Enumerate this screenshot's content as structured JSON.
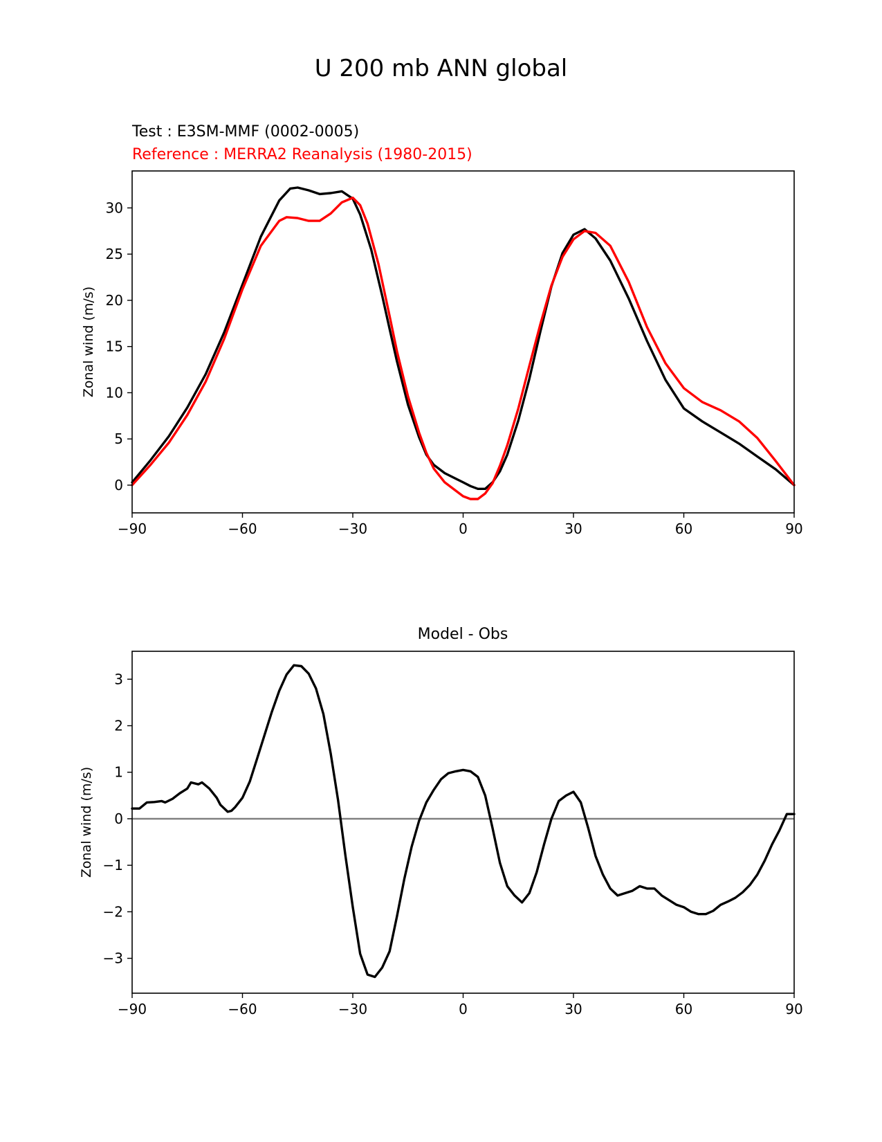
{
  "figure": {
    "title": "U 200 mb ANN global"
  },
  "chart_data": [
    {
      "type": "line",
      "title": "",
      "test_label": "Test : E3SM-MMF (0002-0005)",
      "reference_label": "Reference : MERRA2 Reanalysis (1980-2015)",
      "xlabel": "",
      "ylabel": "Zonal wind (m/s)",
      "xlim": [
        -90,
        90
      ],
      "ylim": [
        -3,
        34
      ],
      "xticks": [
        -90,
        -60,
        -30,
        0,
        30,
        60,
        90
      ],
      "xtick_labels": [
        "−90",
        "−60",
        "−30",
        "0",
        "30",
        "60",
        "90"
      ],
      "yticks": [
        0,
        5,
        10,
        15,
        20,
        25,
        30
      ],
      "ytick_labels": [
        "0",
        "5",
        "10",
        "15",
        "20",
        "25",
        "30"
      ],
      "grid": false,
      "series": [
        {
          "color": "#000000",
          "points": [
            [
              -90,
              0.3
            ],
            [
              -85,
              2.7
            ],
            [
              -80,
              5.3
            ],
            [
              -75,
              8.4
            ],
            [
              -70,
              12.0
            ],
            [
              -65,
              16.5
            ],
            [
              -60,
              21.7
            ],
            [
              -55,
              26.9
            ],
            [
              -50,
              30.8
            ],
            [
              -47,
              32.1
            ],
            [
              -45,
              32.2
            ],
            [
              -42,
              31.9
            ],
            [
              -39,
              31.5
            ],
            [
              -36,
              31.6
            ],
            [
              -33,
              31.8
            ],
            [
              -30,
              31.0
            ],
            [
              -28,
              29.3
            ],
            [
              -25,
              25.5
            ],
            [
              -22,
              20.5
            ],
            [
              -20,
              16.9
            ],
            [
              -18,
              13.4
            ],
            [
              -15,
              8.7
            ],
            [
              -12,
              5.2
            ],
            [
              -10,
              3.3
            ],
            [
              -8,
              2.2
            ],
            [
              -5,
              1.3
            ],
            [
              -2,
              0.7
            ],
            [
              0,
              0.3
            ],
            [
              2,
              -0.1
            ],
            [
              4,
              -0.4
            ],
            [
              6,
              -0.4
            ],
            [
              8,
              0.3
            ],
            [
              10,
              1.5
            ],
            [
              12,
              3.3
            ],
            [
              15,
              7.0
            ],
            [
              18,
              11.5
            ],
            [
              21,
              16.6
            ],
            [
              24,
              21.5
            ],
            [
              27,
              25.1
            ],
            [
              30,
              27.1
            ],
            [
              33,
              27.7
            ],
            [
              36,
              26.7
            ],
            [
              40,
              24.3
            ],
            [
              45,
              20.2
            ],
            [
              50,
              15.6
            ],
            [
              55,
              11.4
            ],
            [
              60,
              8.3
            ],
            [
              65,
              6.9
            ],
            [
              70,
              5.7
            ],
            [
              75,
              4.5
            ],
            [
              80,
              3.1
            ],
            [
              85,
              1.7
            ],
            [
              90,
              0.0
            ]
          ]
        },
        {
          "color": "#ff0000",
          "points": [
            [
              -90,
              0.0
            ],
            [
              -85,
              2.2
            ],
            [
              -80,
              4.6
            ],
            [
              -75,
              7.6
            ],
            [
              -70,
              11.2
            ],
            [
              -65,
              15.8
            ],
            [
              -60,
              21.2
            ],
            [
              -55,
              25.9
            ],
            [
              -50,
              28.6
            ],
            [
              -48,
              29.0
            ],
            [
              -45,
              28.9
            ],
            [
              -42,
              28.6
            ],
            [
              -39,
              28.6
            ],
            [
              -36,
              29.4
            ],
            [
              -33,
              30.6
            ],
            [
              -30,
              31.1
            ],
            [
              -28,
              30.3
            ],
            [
              -26,
              28.3
            ],
            [
              -23,
              23.9
            ],
            [
              -20,
              18.3
            ],
            [
              -18,
              14.5
            ],
            [
              -15,
              9.6
            ],
            [
              -12,
              5.7
            ],
            [
              -10,
              3.5
            ],
            [
              -8,
              1.8
            ],
            [
              -5,
              0.3
            ],
            [
              -2,
              -0.6
            ],
            [
              0,
              -1.2
            ],
            [
              2,
              -1.5
            ],
            [
              4,
              -1.5
            ],
            [
              6,
              -0.9
            ],
            [
              8,
              0.2
            ],
            [
              10,
              2.1
            ],
            [
              12,
              4.3
            ],
            [
              15,
              8.3
            ],
            [
              18,
              12.9
            ],
            [
              21,
              17.4
            ],
            [
              24,
              21.6
            ],
            [
              27,
              24.7
            ],
            [
              30,
              26.6
            ],
            [
              33,
              27.5
            ],
            [
              36,
              27.3
            ],
            [
              40,
              25.9
            ],
            [
              45,
              22.0
            ],
            [
              50,
              17.1
            ],
            [
              55,
              13.2
            ],
            [
              60,
              10.5
            ],
            [
              65,
              9.0
            ],
            [
              70,
              8.1
            ],
            [
              75,
              6.9
            ],
            [
              80,
              5.1
            ],
            [
              85,
              2.6
            ],
            [
              90,
              0.0
            ]
          ]
        }
      ]
    },
    {
      "type": "line",
      "title": "Model - Obs",
      "xlabel": "",
      "ylabel": "Zonal wind (m/s)",
      "xlim": [
        -90,
        90
      ],
      "ylim": [
        -3.75,
        3.6
      ],
      "xticks": [
        -90,
        -60,
        -30,
        0,
        30,
        60,
        90
      ],
      "xtick_labels": [
        "−90",
        "−60",
        "−30",
        "0",
        "30",
        "60",
        "90"
      ],
      "yticks": [
        -3,
        -2,
        -1,
        0,
        1,
        2,
        3
      ],
      "ytick_labels": [
        "−3",
        "−2",
        "−1",
        "0",
        "1",
        "2",
        "3"
      ],
      "grid": false,
      "zero_line": {
        "y": 0,
        "color": "#808080"
      },
      "series": [
        {
          "color": "#000000",
          "points": [
            [
              -90,
              0.22
            ],
            [
              -88,
              0.22
            ],
            [
              -86,
              0.35
            ],
            [
              -84,
              0.36
            ],
            [
              -82,
              0.38
            ],
            [
              -81,
              0.35
            ],
            [
              -79,
              0.43
            ],
            [
              -77,
              0.55
            ],
            [
              -75,
              0.65
            ],
            [
              -74,
              0.78
            ],
            [
              -72,
              0.74
            ],
            [
              -71,
              0.78
            ],
            [
              -69,
              0.65
            ],
            [
              -67,
              0.45
            ],
            [
              -66,
              0.3
            ],
            [
              -64,
              0.15
            ],
            [
              -63,
              0.17
            ],
            [
              -62,
              0.25
            ],
            [
              -60,
              0.45
            ],
            [
              -58,
              0.8
            ],
            [
              -56,
              1.3
            ],
            [
              -54,
              1.8
            ],
            [
              -52,
              2.3
            ],
            [
              -50,
              2.75
            ],
            [
              -48,
              3.1
            ],
            [
              -46,
              3.3
            ],
            [
              -44,
              3.28
            ],
            [
              -42,
              3.12
            ],
            [
              -40,
              2.8
            ],
            [
              -38,
              2.25
            ],
            [
              -36,
              1.4
            ],
            [
              -34,
              0.4
            ],
            [
              -32,
              -0.8
            ],
            [
              -30,
              -1.9
            ],
            [
              -28,
              -2.9
            ],
            [
              -26,
              -3.35
            ],
            [
              -24,
              -3.4
            ],
            [
              -22,
              -3.2
            ],
            [
              -20,
              -2.85
            ],
            [
              -18,
              -2.1
            ],
            [
              -16,
              -1.3
            ],
            [
              -14,
              -0.6
            ],
            [
              -12,
              -0.05
            ],
            [
              -10,
              0.35
            ],
            [
              -8,
              0.62
            ],
            [
              -6,
              0.85
            ],
            [
              -4,
              0.98
            ],
            [
              -2,
              1.02
            ],
            [
              0,
              1.05
            ],
            [
              2,
              1.02
            ],
            [
              4,
              0.9
            ],
            [
              6,
              0.5
            ],
            [
              8,
              -0.2
            ],
            [
              10,
              -0.95
            ],
            [
              12,
              -1.45
            ],
            [
              14,
              -1.65
            ],
            [
              16,
              -1.8
            ],
            [
              18,
              -1.6
            ],
            [
              20,
              -1.15
            ],
            [
              22,
              -0.55
            ],
            [
              24,
              0.0
            ],
            [
              26,
              0.38
            ],
            [
              28,
              0.5
            ],
            [
              30,
              0.58
            ],
            [
              32,
              0.35
            ],
            [
              34,
              -0.2
            ],
            [
              36,
              -0.8
            ],
            [
              38,
              -1.2
            ],
            [
              40,
              -1.5
            ],
            [
              42,
              -1.65
            ],
            [
              44,
              -1.6
            ],
            [
              46,
              -1.55
            ],
            [
              48,
              -1.45
            ],
            [
              50,
              -1.5
            ],
            [
              52,
              -1.5
            ],
            [
              54,
              -1.65
            ],
            [
              56,
              -1.75
            ],
            [
              58,
              -1.85
            ],
            [
              60,
              -1.9
            ],
            [
              62,
              -2.0
            ],
            [
              64,
              -2.05
            ],
            [
              66,
              -2.05
            ],
            [
              68,
              -1.98
            ],
            [
              70,
              -1.85
            ],
            [
              72,
              -1.78
            ],
            [
              74,
              -1.7
            ],
            [
              76,
              -1.58
            ],
            [
              78,
              -1.42
            ],
            [
              80,
              -1.2
            ],
            [
              82,
              -0.9
            ],
            [
              84,
              -0.55
            ],
            [
              86,
              -0.25
            ],
            [
              88,
              0.1
            ],
            [
              90,
              0.1
            ]
          ]
        }
      ]
    }
  ]
}
